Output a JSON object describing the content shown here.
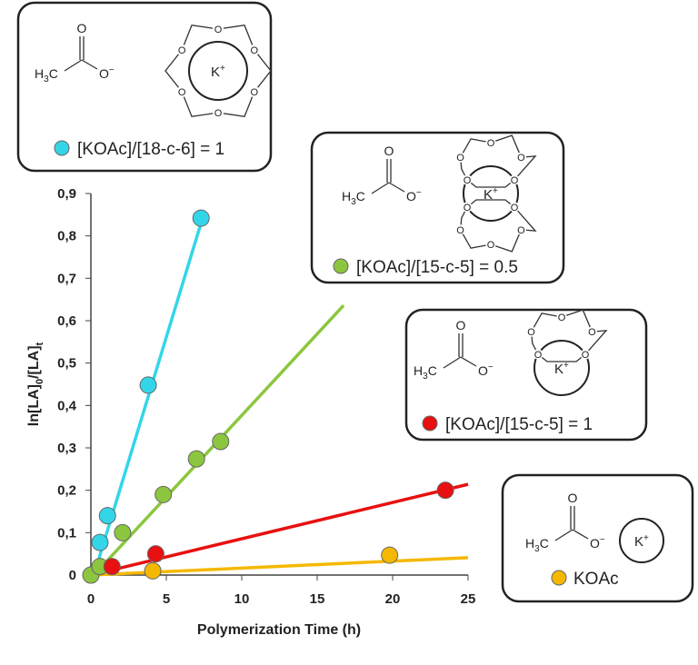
{
  "chart_data": {
    "type": "scatter",
    "xlabel": "Polymerization Time (h)",
    "ylabel": {
      "main": "ln[LA]",
      "sub1": "0",
      "mid": "/[LA]",
      "sub2": "t"
    },
    "xlim": [
      0,
      25
    ],
    "xticks": [
      0,
      5,
      10,
      15,
      20,
      25
    ],
    "ylim": [
      0,
      0.9
    ],
    "yticks": [
      0,
      {
        "value": 0.1,
        "label": "0,1"
      },
      {
        "value": 0.2,
        "label": "0,2"
      },
      {
        "value": 0.3,
        "label": "0,3"
      },
      {
        "value": 0.4,
        "label": "0,4"
      },
      {
        "value": 0.5,
        "label": "0,5"
      },
      {
        "value": 0.6,
        "label": "0,6"
      },
      {
        "value": 0.7,
        "label": "0,7"
      },
      {
        "value": 0.8,
        "label": "0,8"
      },
      {
        "value": 0.9,
        "label": "0,9"
      }
    ],
    "series": [
      {
        "name": "[KOAc]/[18-c-6] = 1",
        "color": "#33d6e8",
        "x": [
          0.6,
          1.1,
          3.8,
          7.3
        ],
        "values": [
          0.077,
          0.14,
          0.448,
          0.842
        ],
        "fit": {
          "x": [
            0.2,
            7.3
          ],
          "values": [
            0,
            0.83
          ]
        },
        "structure": {
          "methyl": [
            "H",
            "3",
            "C"
          ],
          "carbonyl_o": "O",
          "anion_o": "O",
          "charge": "−",
          "cation": "K",
          "cation_charge": "+",
          "ring_o": "O"
        }
      },
      {
        "name": "[KOAc]/[15-c-5] = 0.5",
        "color": "#8cc63f",
        "x": [
          0,
          0.6,
          2.1,
          4.8,
          7.0,
          8.6
        ],
        "values": [
          0,
          0.02,
          0.1,
          0.19,
          0.274,
          0.315
        ],
        "fit": {
          "x": [
            0.2,
            16.75
          ],
          "values": [
            0,
            0.636
          ]
        },
        "structure": {
          "methyl": [
            "H",
            "3",
            "C"
          ],
          "carbonyl_o": "O",
          "anion_o": "O",
          "charge": "−",
          "cation": "K",
          "cation_charge": "+",
          "ring_o": "O"
        }
      },
      {
        "name": "[KOAc]/[15-c-5] = 1",
        "color": "#e81010",
        "x": [
          1.4,
          4.3,
          23.5
        ],
        "values": [
          0.02,
          0.05,
          0.2
        ],
        "fit": {
          "x": [
            0,
            25
          ],
          "values": [
            0,
            0.214
          ]
        },
        "structure": {
          "methyl": [
            "H",
            "3",
            "C"
          ],
          "carbonyl_o": "O",
          "anion_o": "O",
          "charge": "−",
          "cation": "K",
          "cation_charge": "+",
          "ring_o": "O"
        }
      },
      {
        "name": "KOAc",
        "color": "#f5b800",
        "x": [
          4.1,
          19.8
        ],
        "values": [
          0.01,
          0.047
        ],
        "fit": {
          "x": [
            0,
            25
          ],
          "values": [
            0,
            0.041
          ]
        },
        "structure": {
          "methyl": [
            "H",
            "3",
            "C"
          ],
          "carbonyl_o": "O",
          "anion_o": "O",
          "charge": "−",
          "cation": "K",
          "cation_charge": "+"
        }
      }
    ]
  }
}
